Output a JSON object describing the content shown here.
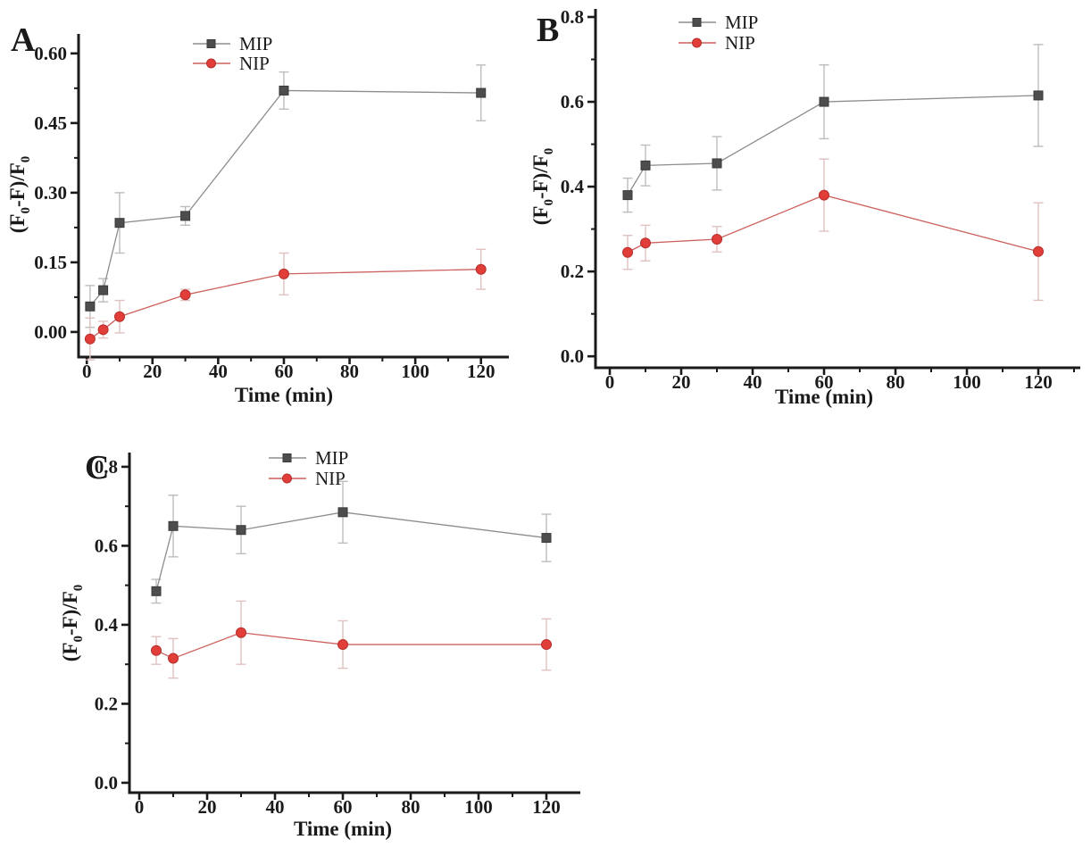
{
  "figure": {
    "background": "#ffffff",
    "text_color": "#1a1a1a",
    "axis_color": "#1a1a1a"
  },
  "chart_data": [
    {
      "type": "line",
      "panel_label": "A",
      "xlabel": "Time (min)",
      "ylabel": "(F0-F)/F0",
      "ylabel_segments": [
        {
          "t": "(F"
        },
        {
          "t": "0",
          "sub": true
        },
        {
          "t": "-F)/F"
        },
        {
          "t": "0",
          "sub": true
        }
      ],
      "legend_position": "top-center",
      "grid": false,
      "x": [
        1,
        5,
        10,
        30,
        60,
        120
      ],
      "series": [
        {
          "name": "MIP",
          "marker": "square",
          "marker_color": "#4d4d4d",
          "marker_edge": "#3a3a3a",
          "line_color": "#8d8d8d",
          "error_color": "#bdbdbd",
          "values": [
            0.055,
            0.09,
            0.235,
            0.25,
            0.52,
            0.515
          ],
          "errors": [
            0.045,
            0.025,
            0.065,
            0.02,
            0.04,
            0.06
          ]
        },
        {
          "name": "NIP",
          "marker": "circle",
          "marker_color": "#e13d39",
          "marker_edge": "#b52f2c",
          "line_color": "#cd615e",
          "error_color": "#dfc2c0",
          "values": [
            -0.015,
            0.005,
            0.033,
            0.08,
            0.125,
            0.135
          ],
          "errors": [
            0.045,
            0.018,
            0.035,
            0.012,
            0.045,
            0.043
          ]
        }
      ],
      "xlim": [
        -2.5,
        128.5
      ],
      "ylim": [
        -0.054,
        0.642
      ],
      "x_major_ticks": [
        0,
        20,
        40,
        60,
        80,
        100,
        120
      ],
      "x_minor_ticks": [
        10,
        30,
        50,
        70,
        90,
        110
      ],
      "y_major_ticks": [
        0.0,
        0.15,
        0.3,
        0.45,
        0.6
      ],
      "y_minor_ticks": [
        0.075,
        0.225,
        0.375,
        0.525
      ],
      "y_tick_decimals": 2
    },
    {
      "type": "line",
      "panel_label": "B",
      "xlabel": "Time (min)",
      "ylabel": "(F0-F)/F0",
      "ylabel_segments": [
        {
          "t": "(F"
        },
        {
          "t": "0",
          "sub": true
        },
        {
          "t": "-F)/F"
        },
        {
          "t": "0",
          "sub": true
        }
      ],
      "legend_position": "top-center",
      "grid": false,
      "x": [
        5,
        10,
        30,
        60,
        120
      ],
      "series": [
        {
          "name": "MIP",
          "marker": "square",
          "marker_color": "#4d4d4d",
          "marker_edge": "#3a3a3a",
          "line_color": "#8d8d8d",
          "error_color": "#bdbdbd",
          "values": [
            0.38,
            0.45,
            0.455,
            0.6,
            0.615
          ],
          "errors": [
            0.04,
            0.048,
            0.063,
            0.087,
            0.12
          ]
        },
        {
          "name": "NIP",
          "marker": "circle",
          "marker_color": "#e13d39",
          "marker_edge": "#b52f2c",
          "line_color": "#cd615e",
          "error_color": "#dfc2c0",
          "values": [
            0.245,
            0.267,
            0.276,
            0.38,
            0.247
          ],
          "errors": [
            0.04,
            0.042,
            0.03,
            0.085,
            0.115
          ]
        }
      ],
      "xlim": [
        -4,
        131.75
      ],
      "ylim": [
        -0.027,
        0.819
      ],
      "x_major_ticks": [
        0,
        20,
        40,
        60,
        80,
        100,
        120
      ],
      "x_minor_ticks": [
        10,
        30,
        50,
        70,
        90,
        110,
        130
      ],
      "y_major_ticks": [
        0.0,
        0.2,
        0.4,
        0.6,
        0.8
      ],
      "y_minor_ticks": [
        0.1,
        0.3,
        0.5,
        0.7
      ],
      "y_tick_decimals": 1
    },
    {
      "type": "line",
      "panel_label": "C",
      "xlabel": "Time (min)",
      "ylabel": "(F0-F)/F0",
      "ylabel_segments": [
        {
          "t": "(F"
        },
        {
          "t": "0",
          "sub": true
        },
        {
          "t": "-F)/F"
        },
        {
          "t": "0",
          "sub": true
        }
      ],
      "legend_position": "top-center",
      "grid": false,
      "x": [
        5,
        10,
        30,
        60,
        120
      ],
      "series": [
        {
          "name": "MIP",
          "marker": "square",
          "marker_color": "#4d4d4d",
          "marker_edge": "#3a3a3a",
          "line_color": "#8d8d8d",
          "error_color": "#bdbdbd",
          "values": [
            0.485,
            0.65,
            0.64,
            0.685,
            0.62
          ],
          "errors": [
            0.03,
            0.078,
            0.06,
            0.078,
            0.06
          ]
        },
        {
          "name": "NIP",
          "marker": "circle",
          "marker_color": "#e13d39",
          "marker_edge": "#b52f2c",
          "line_color": "#cd615e",
          "error_color": "#dfc2c0",
          "values": [
            0.335,
            0.315,
            0.38,
            0.35,
            0.35
          ],
          "errors": [
            0.035,
            0.05,
            0.08,
            0.06,
            0.065
          ]
        }
      ],
      "xlim": [
        -2.9,
        130
      ],
      "ylim": [
        -0.025,
        0.836
      ],
      "x_major_ticks": [
        0,
        20,
        40,
        60,
        80,
        100,
        120
      ],
      "x_minor_ticks": [
        10,
        30,
        50,
        70,
        90,
        110
      ],
      "y_major_ticks": [
        0.0,
        0.2,
        0.4,
        0.6,
        0.8
      ],
      "y_minor_ticks": [
        0.1,
        0.3,
        0.5,
        0.7
      ],
      "y_tick_decimals": 1
    }
  ]
}
